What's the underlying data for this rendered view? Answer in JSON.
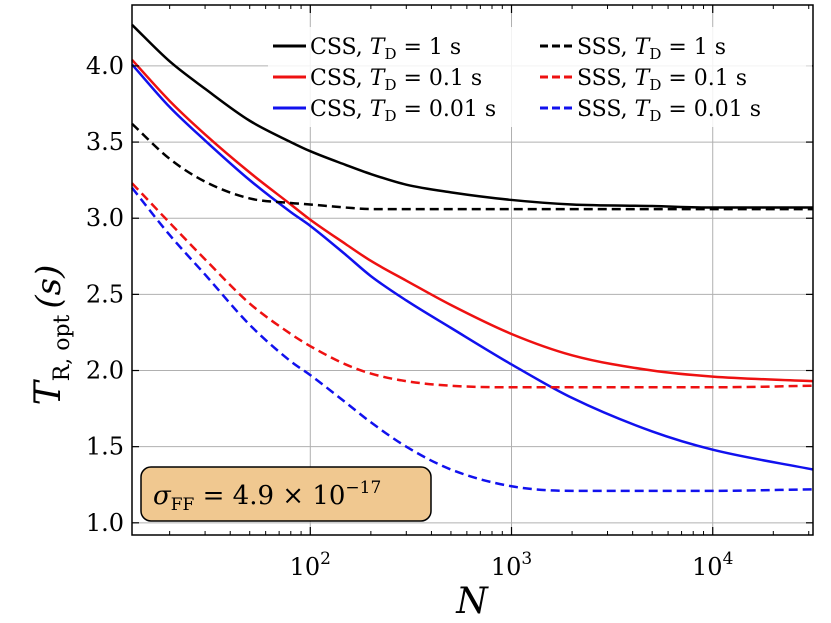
{
  "chart_data": {
    "type": "line",
    "xscale": "log",
    "xlabel": "N",
    "ylabel": "T_R,opt (s)",
    "ylabel_parts": {
      "main": "T",
      "sub": "R, opt",
      "unit": "(s)"
    },
    "xlim": [
      13,
      31500
    ],
    "ylim": [
      0.92,
      4.4
    ],
    "yticks": [
      1.0,
      1.5,
      2.0,
      2.5,
      3.0,
      3.5,
      4.0
    ],
    "ytick_labels": [
      "1.0",
      "1.5",
      "2.0",
      "2.5",
      "3.0",
      "3.5",
      "4.0"
    ],
    "xticks": [
      100,
      1000,
      10000
    ],
    "xtick_labels": [
      {
        "base": "10",
        "exp": "2"
      },
      {
        "base": "10",
        "exp": "3"
      },
      {
        "base": "10",
        "exp": "4"
      }
    ],
    "grid": true,
    "legend_position": "top-right",
    "annotation": {
      "main": "σ",
      "sub": "FF",
      "rest": " = 4.9 × 10",
      "exp": "−17"
    },
    "series": [
      {
        "name": "CSS, T_D = 1 s",
        "label_pre": "CSS,  T",
        "label_sub": "D",
        "label_post": " = 1 s",
        "color": "#000000",
        "dash": "solid",
        "x": [
          13,
          20,
          30,
          50,
          80,
          100,
          150,
          200,
          300,
          500,
          1000,
          2000,
          5000,
          10000,
          31500
        ],
        "y": [
          4.27,
          4.03,
          3.85,
          3.64,
          3.5,
          3.44,
          3.35,
          3.29,
          3.22,
          3.17,
          3.12,
          3.09,
          3.08,
          3.07,
          3.07
        ]
      },
      {
        "name": "CSS, T_D = 0.1 s",
        "label_pre": "CSS,  T",
        "label_sub": "D",
        "label_post": " = 0.1 s",
        "color": "#ee1111",
        "dash": "solid",
        "x": [
          13,
          20,
          30,
          50,
          80,
          100,
          150,
          200,
          300,
          500,
          1000,
          2000,
          5000,
          10000,
          31500
        ],
        "y": [
          4.04,
          3.77,
          3.55,
          3.3,
          3.09,
          2.99,
          2.83,
          2.72,
          2.59,
          2.43,
          2.24,
          2.1,
          2.0,
          1.96,
          1.93
        ]
      },
      {
        "name": "CSS, T_D = 0.01 s",
        "label_pre": "CSS,  T",
        "label_sub": "D",
        "label_post": " = 0.01 s",
        "color": "#1111ee",
        "dash": "solid",
        "x": [
          13,
          20,
          30,
          50,
          80,
          100,
          150,
          200,
          300,
          500,
          1000,
          2000,
          5000,
          10000,
          31500
        ],
        "y": [
          4.01,
          3.73,
          3.51,
          3.25,
          3.04,
          2.95,
          2.76,
          2.62,
          2.46,
          2.28,
          2.04,
          1.82,
          1.6,
          1.48,
          1.35
        ]
      },
      {
        "name": "SSS, T_D = 1 s",
        "label_pre": "SSS,  T",
        "label_sub": "D",
        "label_post": " = 1 s",
        "color": "#000000",
        "dash": "dashed",
        "x": [
          13,
          20,
          30,
          50,
          80,
          100,
          150,
          200,
          300,
          500,
          1000,
          2000,
          5000,
          10000,
          31500
        ],
        "y": [
          3.62,
          3.39,
          3.24,
          3.13,
          3.1,
          3.09,
          3.07,
          3.06,
          3.06,
          3.06,
          3.06,
          3.06,
          3.06,
          3.06,
          3.06
        ]
      },
      {
        "name": "SSS, T_D = 0.1 s",
        "label_pre": "SSS,  T",
        "label_sub": "D",
        "label_post": " = 0.1 s",
        "color": "#ee1111",
        "dash": "dashed",
        "x": [
          13,
          20,
          30,
          50,
          80,
          100,
          150,
          200,
          300,
          500,
          1000,
          2000,
          5000,
          10000,
          31500
        ],
        "y": [
          3.23,
          2.97,
          2.73,
          2.44,
          2.24,
          2.16,
          2.04,
          1.98,
          1.93,
          1.9,
          1.89,
          1.89,
          1.89,
          1.89,
          1.9
        ]
      },
      {
        "name": "SSS, T_D = 0.01 s",
        "label_pre": "SSS,  T",
        "label_sub": "D",
        "label_post": " = 0.01 s",
        "color": "#1111ee",
        "dash": "dashed",
        "x": [
          13,
          20,
          30,
          50,
          80,
          100,
          150,
          200,
          300,
          500,
          1000,
          2000,
          5000,
          10000,
          31500
        ],
        "y": [
          3.2,
          2.89,
          2.63,
          2.3,
          2.06,
          1.97,
          1.79,
          1.66,
          1.5,
          1.35,
          1.24,
          1.21,
          1.21,
          1.21,
          1.22
        ]
      }
    ]
  }
}
